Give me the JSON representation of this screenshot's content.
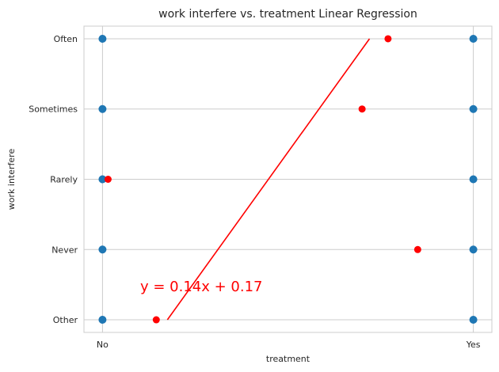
{
  "chart_data": {
    "type": "scatter",
    "title": "work interfere vs. treatment Linear Regression",
    "xlabel": "treatment",
    "ylabel": "work interfere",
    "x_tick_labels": [
      "No",
      "Yes"
    ],
    "y_tick_labels": [
      "Other",
      "Never",
      "Rarely",
      "Sometimes",
      "Often"
    ],
    "xlim": [
      -0.05,
      1.05
    ],
    "ylim": [
      -0.18,
      4.18
    ],
    "grid": true,
    "points_blue": [
      {
        "x": 0,
        "y": 0
      },
      {
        "x": 0,
        "y": 1
      },
      {
        "x": 0,
        "y": 2
      },
      {
        "x": 0,
        "y": 3
      },
      {
        "x": 0,
        "y": 4
      },
      {
        "x": 1,
        "y": 0
      },
      {
        "x": 1,
        "y": 1
      },
      {
        "x": 1,
        "y": 2
      },
      {
        "x": 1,
        "y": 3
      },
      {
        "x": 1,
        "y": 4
      }
    ],
    "points_red": [
      {
        "x": 0.015,
        "y": 2.0
      },
      {
        "x": 0.145,
        "y": 0.0
      },
      {
        "x": 0.7,
        "y": 3.0
      },
      {
        "x": 0.77,
        "y": 4.0
      },
      {
        "x": 0.85,
        "y": 1.0
      }
    ],
    "regression_line": {
      "x1": 0.175,
      "y1": 0.0,
      "x2": 0.72,
      "y2": 4.0
    },
    "equation": "y = 0.14x + 0.17",
    "colors": {
      "blue": "#1f77b4",
      "red": "#ff0000",
      "grid": "#cccccc",
      "spine": "#cccccc"
    }
  }
}
